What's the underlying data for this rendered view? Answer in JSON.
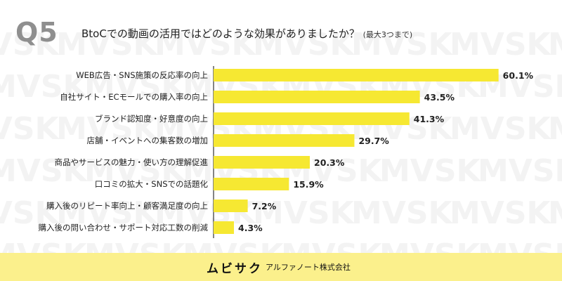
{
  "header": {
    "question_number": "Q5",
    "question": "BtoCでの動画の活用ではどのような効果がありましたか？",
    "note": "(最大3つまで)"
  },
  "watermark": {
    "text": "MVSK",
    "color": "#f3f3f3"
  },
  "footer": {
    "brand": "ムビサク",
    "company": "アルファノート株式会社",
    "background": "#fbf08c"
  },
  "chart_data": {
    "type": "bar",
    "orientation": "horizontal",
    "categories": [
      "WEB広告・SNS施策の反応率の向上",
      "自社サイト・ECモールでの購入率の向上",
      "ブランド認知度・好意度の向上",
      "店舗・イベントへの集客数の増加",
      "商品やサービスの魅力・使い方の理解促進",
      "口コミの拡大・SNSでの話題化",
      "購入後のリピート率向上・顧客満足度の向上",
      "購入後の問い合わせ・サポート対応工数の削減"
    ],
    "values": [
      60.1,
      43.5,
      41.3,
      29.7,
      20.3,
      15.9,
      7.2,
      4.3
    ],
    "value_labels": [
      "60.1%",
      "43.5%",
      "41.3%",
      "29.7%",
      "20.3%",
      "15.9%",
      "7.2%",
      "4.3%"
    ],
    "bar_color": "#f6e832",
    "axis_line_color": "#333333",
    "xlim": [
      0,
      100
    ],
    "grid": false,
    "legend": "none"
  }
}
